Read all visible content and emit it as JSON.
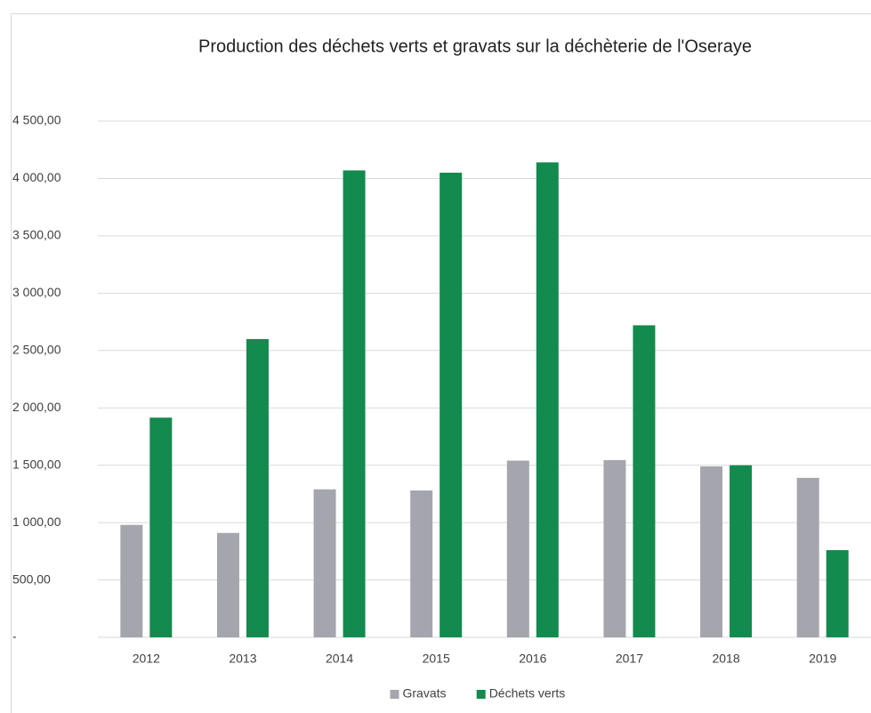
{
  "chart_data": {
    "type": "bar",
    "title": "Production des déchets verts et gravats sur la déchèterie de l'Oseraye",
    "categories": [
      "2012",
      "2013",
      "2014",
      "2015",
      "2016",
      "2017",
      "2018",
      "2019"
    ],
    "series": [
      {
        "name": "Gravats",
        "color": "#a5a5ae",
        "values": [
          980,
          910,
          1290,
          1280,
          1540,
          1545,
          1490,
          1390
        ]
      },
      {
        "name": "Déchets verts",
        "color": "#138a4e",
        "values": [
          1915,
          2600,
          4070,
          4050,
          4140,
          2720,
          1500,
          760
        ]
      }
    ],
    "ylim": [
      0,
      4500
    ],
    "yticks": [
      {
        "value": 0,
        "label": "-"
      },
      {
        "value": 500,
        "label": "500,00"
      },
      {
        "value": 1000,
        "label": "1 000,00"
      },
      {
        "value": 1500,
        "label": "1 500,00"
      },
      {
        "value": 2000,
        "label": "2 000,00"
      },
      {
        "value": 2500,
        "label": "2 500,00"
      },
      {
        "value": 3000,
        "label": "3 000,00"
      },
      {
        "value": 3500,
        "label": "3 500,00"
      },
      {
        "value": 4000,
        "label": "4 000,00"
      },
      {
        "value": 4500,
        "label": "4 500,00"
      }
    ],
    "grid": true,
    "legend": "bottom"
  }
}
